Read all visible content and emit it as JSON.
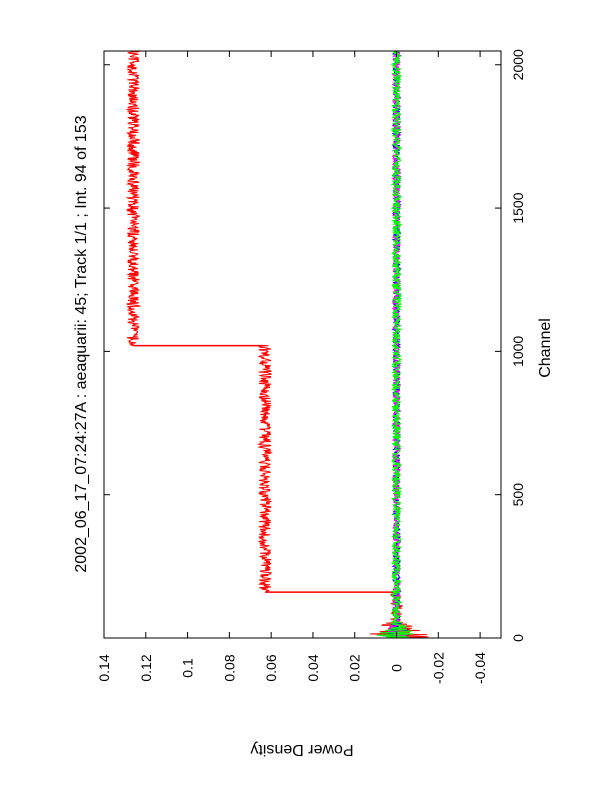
{
  "chart_data": {
    "type": "line",
    "title": "2002_06_17_07:24:27A : aeaquarii: 45; Track 1/1 ; Int. 94 of 153",
    "xlabel": "Channel",
    "ylabel": "Power Density",
    "xlim": [
      0,
      2048
    ],
    "ylim": [
      -0.05,
      0.14
    ],
    "x_ticks": [
      0,
      500,
      1000,
      1500,
      2000
    ],
    "x_tick_labels": [
      "0",
      "500",
      "1000",
      "1500",
      "2000"
    ],
    "y_ticks": [
      -0.04,
      -0.02,
      0,
      0.02,
      0.04,
      0.06,
      0.08,
      0.1,
      0.12,
      0.14
    ],
    "y_tick_labels": [
      "-0.04",
      "-0.02",
      "0",
      "0.02",
      "0.04",
      "0.06",
      "0.08",
      "0.1",
      "0.12",
      "0.14"
    ],
    "grid": false,
    "rotated": "plot rotated 90 degrees clockwise (channel axis vertical)",
    "series": [
      {
        "color": "#ff0000",
        "noise": 0.003,
        "segments": [
          {
            "x": [
              0,
              160
            ],
            "y": 0.0
          },
          {
            "x": [
              160,
              1020
            ],
            "y": 0.063
          },
          {
            "x": [
              1020,
              2048
            ],
            "y": 0.126
          }
        ],
        "steps": [
          {
            "x": 160,
            "from": 0.0,
            "to": 0.063
          },
          {
            "x": 1020,
            "from": 0.063,
            "to": 0.126
          }
        ]
      },
      {
        "color": "#0000ff",
        "noise": 0.0018,
        "segments": [
          {
            "x": [
              0,
              2048
            ],
            "y": 0.0
          }
        ]
      },
      {
        "color": "#ff00ff",
        "noise": 0.0018,
        "segments": [
          {
            "x": [
              0,
              2048
            ],
            "y": 0.0
          }
        ]
      },
      {
        "color": "#00ff00",
        "noise": 0.0022,
        "segments": [
          {
            "x": [
              0,
              2048
            ],
            "y": 0.0
          }
        ]
      }
    ]
  }
}
